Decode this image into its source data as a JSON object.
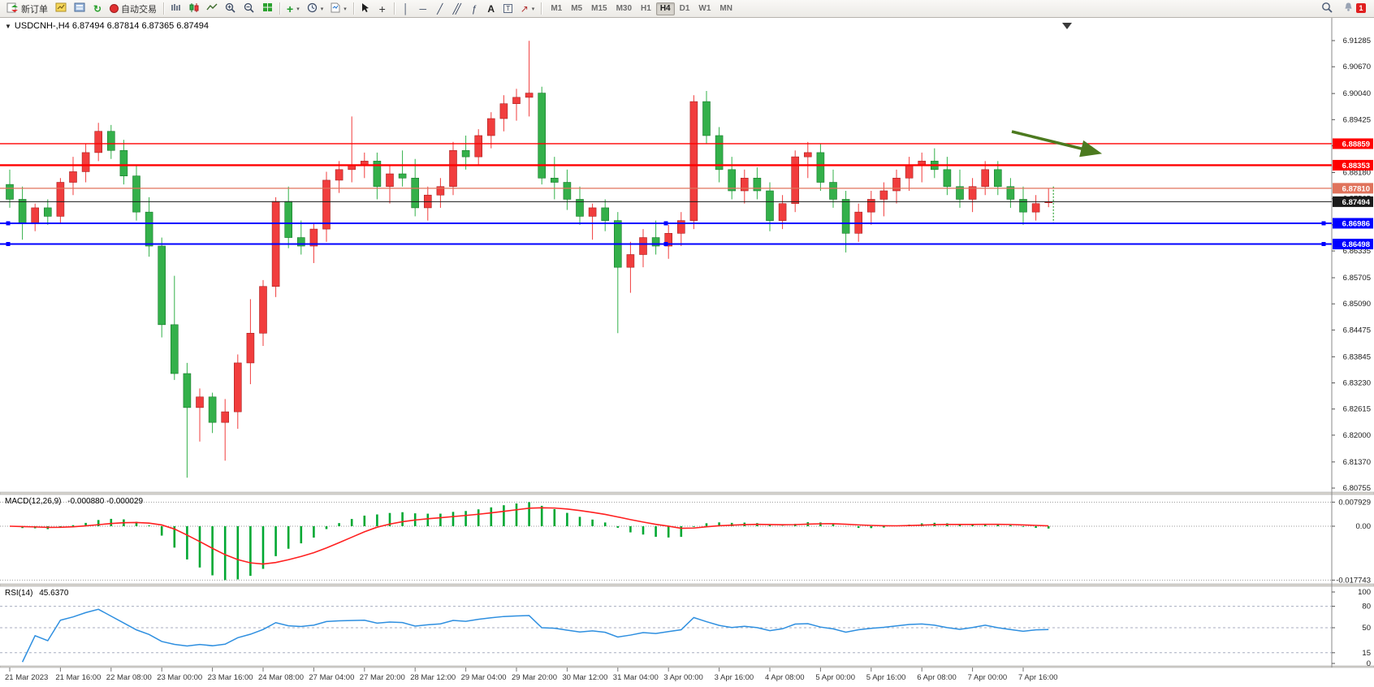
{
  "toolbar": {
    "new_order_label": "新订单",
    "autotrading_label": "自动交易",
    "timeframes": [
      "M1",
      "M5",
      "M15",
      "M30",
      "H1",
      "H4",
      "D1",
      "W1",
      "MN"
    ],
    "active_timeframe": "H4",
    "text_tool_label": "A",
    "label_tool_label": "T",
    "notification_badge": "1"
  },
  "chart": {
    "info_line": "USDCNH-,H4  6.87494 6.87814 6.87365 6.87494"
  },
  "indicators": {
    "macd_label": "MACD(12,26,9)",
    "macd_values": "-0.000880 -0.000029",
    "rsi_label": "RSI(14)",
    "rsi_value": "45.6370"
  },
  "colors": {
    "bull": "#f13d3d",
    "bull_border": "#a81e1e",
    "bear": "#33b04a",
    "bear_border": "#177a2a",
    "macd_hist": "#00a832",
    "macd_signal": "#ff2020",
    "rsi_line": "#2e8fe0",
    "arrow": "#4c7a1f"
  },
  "chart_data": {
    "type": "candlestick",
    "symbol": "USDCNH-",
    "timeframe": "H4",
    "ohlc_current": {
      "open": 6.87494,
      "high": 6.87814,
      "low": 6.87365,
      "close": 6.87494
    },
    "candles": [
      [
        6.879,
        6.8825,
        6.8735,
        6.8755
      ],
      [
        6.8755,
        6.8785,
        6.866,
        6.87
      ],
      [
        6.87,
        6.8745,
        6.868,
        6.8735
      ],
      [
        6.8735,
        6.8755,
        6.8695,
        6.8715
      ],
      [
        6.8715,
        6.8805,
        6.87,
        6.8795
      ],
      [
        6.8795,
        6.8855,
        6.8765,
        6.882
      ],
      [
        6.882,
        6.8885,
        6.8795,
        6.8865
      ],
      [
        6.8865,
        6.8935,
        6.8845,
        6.8915
      ],
      [
        6.8915,
        6.893,
        6.885,
        6.887
      ],
      [
        6.887,
        6.8895,
        6.879,
        6.881
      ],
      [
        6.881,
        6.8835,
        6.8705,
        6.8725
      ],
      [
        6.8725,
        6.876,
        6.862,
        6.8645
      ],
      [
        6.8645,
        6.8665,
        6.843,
        6.846
      ],
      [
        6.846,
        6.8575,
        6.833,
        6.8345
      ],
      [
        6.8345,
        6.837,
        6.81,
        6.8265
      ],
      [
        6.8265,
        6.831,
        6.8185,
        6.829
      ],
      [
        6.829,
        6.83,
        6.8205,
        6.823
      ],
      [
        6.823,
        6.8285,
        6.814,
        6.8255
      ],
      [
        6.8255,
        6.839,
        6.8215,
        6.837
      ],
      [
        6.837,
        6.852,
        6.832,
        6.844
      ],
      [
        6.844,
        6.8565,
        6.841,
        6.855
      ],
      [
        6.855,
        6.876,
        6.8525,
        6.875
      ],
      [
        6.875,
        6.8785,
        6.864,
        6.8665
      ],
      [
        6.8665,
        6.8705,
        6.8625,
        6.8645
      ],
      [
        6.8645,
        6.87,
        6.8605,
        6.8685
      ],
      [
        6.8685,
        6.882,
        6.8655,
        6.88
      ],
      [
        6.88,
        6.8845,
        6.877,
        6.8825
      ],
      [
        6.8825,
        6.895,
        6.8795,
        6.8835
      ],
      [
        6.8835,
        6.8865,
        6.8805,
        6.8845
      ],
      [
        6.8845,
        6.8865,
        6.8755,
        6.8785
      ],
      [
        6.8785,
        6.8835,
        6.8745,
        6.8815
      ],
      [
        6.8815,
        6.887,
        6.8785,
        6.8805
      ],
      [
        6.8805,
        6.885,
        6.8715,
        6.8735
      ],
      [
        6.8735,
        6.8785,
        6.8705,
        6.8765
      ],
      [
        6.8765,
        6.8805,
        6.8735,
        6.8785
      ],
      [
        6.8785,
        6.889,
        6.8765,
        6.887
      ],
      [
        6.887,
        6.8905,
        6.8825,
        6.8855
      ],
      [
        6.8855,
        6.892,
        6.8835,
        6.8905
      ],
      [
        6.8905,
        6.896,
        6.8875,
        6.8945
      ],
      [
        6.8945,
        6.9,
        6.8915,
        6.898
      ],
      [
        6.898,
        6.9015,
        6.894,
        6.8995
      ],
      [
        6.8995,
        6.9128,
        6.895,
        6.9005
      ],
      [
        6.9005,
        6.902,
        6.879,
        6.8805
      ],
      [
        6.8805,
        6.8855,
        6.8755,
        6.8795
      ],
      [
        6.8795,
        6.8825,
        6.873,
        6.8755
      ],
      [
        6.8755,
        6.8785,
        6.8695,
        6.8715
      ],
      [
        6.8715,
        6.8745,
        6.866,
        6.8735
      ],
      [
        6.8735,
        6.8755,
        6.868,
        6.8705
      ],
      [
        6.8705,
        6.8725,
        6.844,
        6.8595
      ],
      [
        6.8595,
        6.8655,
        6.8535,
        6.8625
      ],
      [
        6.8625,
        6.8685,
        6.8595,
        6.8665
      ],
      [
        6.8665,
        6.8705,
        6.8625,
        6.8645
      ],
      [
        6.8645,
        6.8695,
        6.8615,
        6.8675
      ],
      [
        6.8675,
        6.8725,
        6.8645,
        6.8705
      ],
      [
        6.8705,
        6.9,
        6.8685,
        6.8985
      ],
      [
        6.8985,
        6.901,
        6.8885,
        6.8905
      ],
      [
        6.8905,
        6.8925,
        6.8795,
        6.8825
      ],
      [
        6.8825,
        6.8855,
        6.8755,
        6.8775
      ],
      [
        6.8775,
        6.8825,
        6.8745,
        6.8805
      ],
      [
        6.8805,
        6.883,
        6.8755,
        6.8775
      ],
      [
        6.8775,
        6.8795,
        6.868,
        6.8705
      ],
      [
        6.8705,
        6.8765,
        6.8685,
        6.8745
      ],
      [
        6.8745,
        6.887,
        6.8725,
        6.8855
      ],
      [
        6.8855,
        6.889,
        6.8805,
        6.8865
      ],
      [
        6.8865,
        6.8885,
        6.8775,
        6.8795
      ],
      [
        6.8795,
        6.8825,
        6.8735,
        6.8755
      ],
      [
        6.8755,
        6.8775,
        6.863,
        6.8675
      ],
      [
        6.8675,
        6.8745,
        6.8655,
        6.8725
      ],
      [
        6.8725,
        6.8775,
        6.8695,
        6.8755
      ],
      [
        6.8755,
        6.8795,
        6.8715,
        6.8775
      ],
      [
        6.8775,
        6.8825,
        6.8745,
        6.8805
      ],
      [
        6.8805,
        6.8855,
        6.8775,
        6.8835
      ],
      [
        6.8835,
        6.8865,
        6.8795,
        6.8845
      ],
      [
        6.8845,
        6.8875,
        6.8805,
        6.8825
      ],
      [
        6.8825,
        6.8855,
        6.8765,
        6.8785
      ],
      [
        6.8785,
        6.8825,
        6.8735,
        6.8755
      ],
      [
        6.8755,
        6.8805,
        6.8725,
        6.8785
      ],
      [
        6.8785,
        6.8845,
        6.8765,
        6.8825
      ],
      [
        6.8825,
        6.8845,
        6.8765,
        6.8785
      ],
      [
        6.8785,
        6.8805,
        6.8735,
        6.8755
      ],
      [
        6.8755,
        6.8785,
        6.8695,
        6.8725
      ],
      [
        6.8725,
        6.8765,
        6.8705,
        6.8745
      ],
      [
        6.87494,
        6.87814,
        6.87365,
        6.87494
      ]
    ],
    "price_ticks": [
      "6.91285",
      "6.90670",
      "6.90040",
      "6.89425",
      "6.88810",
      "6.88180",
      "6.87565",
      "6.86950",
      "6.86335",
      "6.85705",
      "6.85090",
      "6.84475",
      "6.83845",
      "6.83230",
      "6.82615",
      "6.82000",
      "6.81370",
      "6.80755"
    ],
    "hlines": [
      {
        "price": 6.88859,
        "label": "6.88859",
        "color": "#ff0000",
        "width": 1.4,
        "handles": false
      },
      {
        "price": 6.88353,
        "label": "6.88353",
        "color": "#ff0000",
        "width": 2.4,
        "handles": false
      },
      {
        "price": 6.8781,
        "label": "6.87810",
        "color": "#e0735c",
        "width": 1.2,
        "handles": false
      },
      {
        "price": 6.87494,
        "label": "6.87494",
        "color": "#1a1a1a",
        "width": 1.0,
        "handles": false
      },
      {
        "price": 6.86986,
        "label": "6.86986",
        "color": "#0000ff",
        "width": 2.0,
        "handles": true
      },
      {
        "price": 6.86498,
        "label": "6.86498",
        "color": "#0000ff",
        "width": 2.0,
        "handles": true
      }
    ],
    "time_labels": [
      "21 Mar 2023",
      "21 Mar 16:00",
      "22 Mar 08:00",
      "23 Mar 00:00",
      "23 Mar 16:00",
      "24 Mar 08:00",
      "27 Mar 04:00",
      "27 Mar 20:00",
      "28 Mar 12:00",
      "29 Mar 04:00",
      "29 Mar 20:00",
      "30 Mar 12:00",
      "31 Mar 04:00",
      "3 Apr 00:00",
      "3 Apr 16:00",
      "4 Apr 08:00",
      "5 Apr 00:00",
      "5 Apr 16:00",
      "6 Apr 08:00",
      "7 Apr 00:00",
      "7 Apr 16:00"
    ],
    "annotations": [
      {
        "type": "arrow",
        "direction": "down-right",
        "color": "#4c7a1f"
      }
    ],
    "indicators": {
      "macd": {
        "params": [
          12,
          26,
          9
        ],
        "display_values": [
          -0.00088,
          -2.9e-05
        ],
        "axis_ticks": [
          {
            "label": "0.007929",
            "value": 0.007929,
            "dashed": true
          },
          {
            "label": "0.00",
            "value": 0,
            "dashed": true
          },
          {
            "label": "-0.017743",
            "value": -0.017743,
            "dashed": true
          }
        ]
      },
      "rsi": {
        "period": 14,
        "value": 45.637,
        "levels": [
          {
            "label": "100",
            "value": 100,
            "dashed": false
          },
          {
            "label": "80",
            "value": 80,
            "dashed": true
          },
          {
            "label": "50",
            "value": 50,
            "dashed": true
          },
          {
            "label": "15",
            "value": 15,
            "dashed": true
          },
          {
            "label": "0",
            "value": 0,
            "dashed": false
          }
        ]
      }
    }
  }
}
